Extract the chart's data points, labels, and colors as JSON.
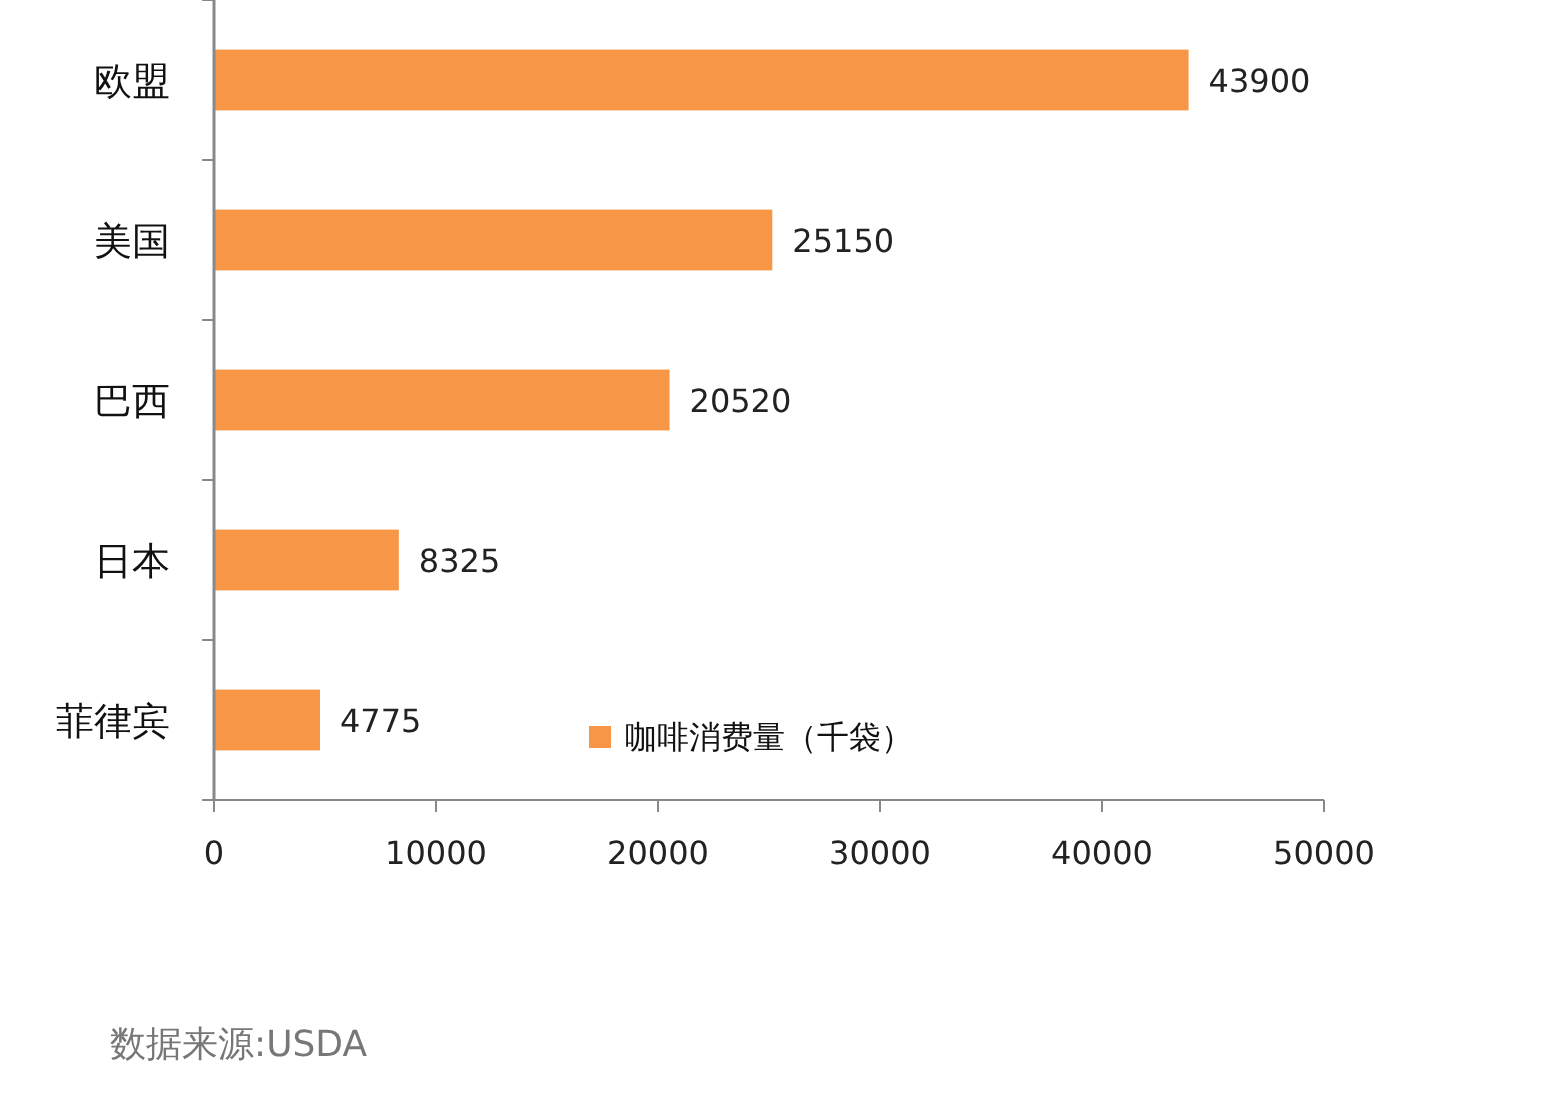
{
  "chart_data": {
    "type": "bar",
    "orientation": "horizontal",
    "categories": [
      "欧盟",
      "美国",
      "巴西",
      "日本",
      "菲律宾"
    ],
    "series": [
      {
        "name": "咖啡消费量（千袋）",
        "color": "#f79646",
        "values": [
          43900,
          25150,
          20520,
          8325,
          4775
        ]
      }
    ],
    "xlim": [
      0,
      50000
    ],
    "xticks": [
      0,
      10000,
      20000,
      30000,
      40000,
      50000
    ],
    "data_labels": true,
    "grid": false,
    "legend": "bottom",
    "annotations": [
      "数据来源:USDA"
    ]
  }
}
